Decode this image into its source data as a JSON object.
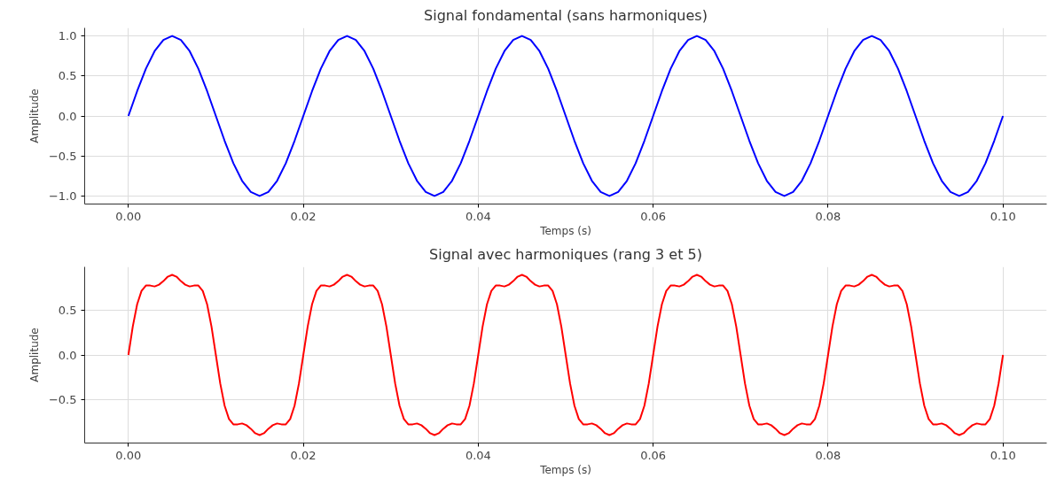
{
  "chart_data": [
    {
      "type": "line",
      "title": "Signal fondamental (sans harmoniques)",
      "xlabel": "Temps (s)",
      "ylabel": "Amplitude",
      "x": [
        0,
        0.001,
        0.002,
        0.003,
        0.004,
        0.005,
        0.006,
        0.007,
        0.008,
        0.009,
        0.01,
        0.011,
        0.012,
        0.013,
        0.014,
        0.015,
        0.016,
        0.017,
        0.018,
        0.019,
        0.02,
        0.021,
        0.022,
        0.023,
        0.024,
        0.025,
        0.026,
        0.027,
        0.028,
        0.029,
        0.03,
        0.031,
        0.032,
        0.033,
        0.034,
        0.035,
        0.036,
        0.037,
        0.038,
        0.039,
        0.04,
        0.041,
        0.042,
        0.043,
        0.044,
        0.045,
        0.046,
        0.047,
        0.048,
        0.049,
        0.05,
        0.051,
        0.052,
        0.053,
        0.054,
        0.055,
        0.056,
        0.057,
        0.058,
        0.059,
        0.06,
        0.061,
        0.062,
        0.063,
        0.064,
        0.065,
        0.066,
        0.067,
        0.068,
        0.069,
        0.07,
        0.071,
        0.072,
        0.073,
        0.074,
        0.075,
        0.076,
        0.077,
        0.078,
        0.079,
        0.08,
        0.081,
        0.082,
        0.083,
        0.084,
        0.085,
        0.086,
        0.087,
        0.088,
        0.089,
        0.09,
        0.091,
        0.092,
        0.093,
        0.094,
        0.095,
        0.096,
        0.097,
        0.098,
        0.099,
        0.1
      ],
      "series": [
        {
          "color": "#0000ff",
          "values": [
            0,
            0.31,
            0.59,
            0.81,
            0.95,
            1,
            0.95,
            0.81,
            0.59,
            0.31,
            0,
            -0.31,
            -0.59,
            -0.81,
            -0.95,
            -1,
            -0.95,
            -0.81,
            -0.59,
            -0.31,
            0,
            0.31,
            0.59,
            0.81,
            0.95,
            1,
            0.95,
            0.81,
            0.59,
            0.31,
            0,
            -0.31,
            -0.59,
            -0.81,
            -0.95,
            -1,
            -0.95,
            -0.81,
            -0.59,
            -0.31,
            0,
            0.31,
            0.59,
            0.81,
            0.95,
            1,
            0.95,
            0.81,
            0.59,
            0.31,
            0,
            -0.31,
            -0.59,
            -0.81,
            -0.95,
            -1,
            -0.95,
            -0.81,
            -0.59,
            -0.31,
            0,
            0.31,
            0.59,
            0.81,
            0.95,
            1,
            0.95,
            0.81,
            0.59,
            0.31,
            0,
            -0.31,
            -0.59,
            -0.81,
            -0.95,
            -1,
            -0.95,
            -0.81,
            -0.59,
            -0.31,
            0,
            0.31,
            0.59,
            0.81,
            0.95,
            1,
            0.95,
            0.81,
            0.59,
            0.31,
            0,
            -0.31,
            -0.59,
            -0.81,
            -0.95,
            -1,
            -0.95,
            -0.81,
            -0.59,
            -0.31,
            0
          ]
        }
      ],
      "xlim": [
        -0.005,
        0.105
      ],
      "ylim": [
        -1.1,
        1.1
      ],
      "xticks": [
        {
          "value": 0,
          "label": "0.00"
        },
        {
          "value": 0.02,
          "label": "0.02"
        },
        {
          "value": 0.04,
          "label": "0.04"
        },
        {
          "value": 0.06,
          "label": "0.06"
        },
        {
          "value": 0.08,
          "label": "0.08"
        },
        {
          "value": 0.1,
          "label": "0.10"
        }
      ],
      "yticks": [
        {
          "value": -1,
          "label": "−1.0"
        },
        {
          "value": -0.5,
          "label": "−0.5"
        },
        {
          "value": 0,
          "label": "0.0"
        },
        {
          "value": 0.5,
          "label": "0.5"
        },
        {
          "value": 1,
          "label": "1.0"
        }
      ],
      "grid": true,
      "line_style": "solid"
    },
    {
      "type": "line",
      "title": "Signal avec harmoniques (rang 3 et 5)",
      "xlabel": "Temps (s)",
      "ylabel": "Amplitude",
      "x": [
        0,
        0.0005,
        0.001,
        0.0015,
        0.002,
        0.0025,
        0.003,
        0.0035,
        0.004,
        0.0045,
        0.005,
        0.0055,
        0.006,
        0.0065,
        0.007,
        0.0075,
        0.008,
        0.0085,
        0.009,
        0.0095,
        0.01,
        0.0105,
        0.011,
        0.0115,
        0.012,
        0.0125,
        0.013,
        0.0135,
        0.014,
        0.0145,
        0.015,
        0.0155,
        0.016,
        0.0165,
        0.017,
        0.0175,
        0.018,
        0.0185,
        0.019,
        0.0195,
        0.02,
        0.0205,
        0.021,
        0.0215,
        0.022,
        0.0225,
        0.023,
        0.0235,
        0.024,
        0.0245,
        0.025,
        0.0255,
        0.026,
        0.0265,
        0.027,
        0.0275,
        0.028,
        0.0285,
        0.029,
        0.0295,
        0.03,
        0.0305,
        0.031,
        0.0315,
        0.032,
        0.0325,
        0.033,
        0.0335,
        0.034,
        0.0345,
        0.035,
        0.0355,
        0.036,
        0.0365,
        0.037,
        0.0375,
        0.038,
        0.0385,
        0.039,
        0.0395,
        0.04,
        0.0405,
        0.041,
        0.0415,
        0.042,
        0.0425,
        0.043,
        0.0435,
        0.044,
        0.0445,
        0.045,
        0.0455,
        0.046,
        0.0465,
        0.047,
        0.0475,
        0.048,
        0.0485,
        0.049,
        0.0495,
        0.05,
        0.0505,
        0.051,
        0.0515,
        0.052,
        0.0525,
        0.053,
        0.0535,
        0.054,
        0.0545,
        0.055,
        0.0555,
        0.056,
        0.0565,
        0.057,
        0.0575,
        0.058,
        0.0585,
        0.059,
        0.0595,
        0.06,
        0.0605,
        0.061,
        0.0615,
        0.062,
        0.0625,
        0.063,
        0.0635,
        0.064,
        0.0645,
        0.065,
        0.0655,
        0.066,
        0.0665,
        0.067,
        0.0675,
        0.068,
        0.0685,
        0.069,
        0.0695,
        0.07,
        0.0705,
        0.071,
        0.0715,
        0.072,
        0.0725,
        0.073,
        0.0735,
        0.074,
        0.0745,
        0.075,
        0.0755,
        0.076,
        0.0765,
        0.077,
        0.0775,
        0.078,
        0.0785,
        0.079,
        0.0795,
        0.08,
        0.0805,
        0.081,
        0.0815,
        0.082,
        0.0825,
        0.083,
        0.0835,
        0.084,
        0.0845,
        0.085,
        0.0855,
        0.086,
        0.0865,
        0.087,
        0.0875,
        0.088,
        0.0885,
        0.089,
        0.0895,
        0.09,
        0.0905,
        0.091,
        0.0915,
        0.092,
        0.0925,
        0.093,
        0.0935,
        0.094,
        0.0945,
        0.095,
        0.0955,
        0.096,
        0.0965,
        0.097,
        0.0975,
        0.098,
        0.0985,
        0.099,
        0.0995,
        0.1
      ],
      "series": [
        {
          "color": "#ff0000",
          "values": [
            0,
            0.32,
            0.57,
            0.72,
            0.78,
            0.78,
            0.77,
            0.79,
            0.83,
            0.88,
            0.9,
            0.88,
            0.83,
            0.79,
            0.77,
            0.78,
            0.78,
            0.72,
            0.57,
            0.32,
            0,
            -0.32,
            -0.57,
            -0.72,
            -0.78,
            -0.78,
            -0.77,
            -0.79,
            -0.83,
            -0.88,
            -0.9,
            -0.88,
            -0.83,
            -0.79,
            -0.77,
            -0.78,
            -0.78,
            -0.72,
            -0.57,
            -0.32,
            0,
            0.32,
            0.57,
            0.72,
            0.78,
            0.78,
            0.77,
            0.79,
            0.83,
            0.88,
            0.9,
            0.88,
            0.83,
            0.79,
            0.77,
            0.78,
            0.78,
            0.72,
            0.57,
            0.32,
            0,
            -0.32,
            -0.57,
            -0.72,
            -0.78,
            -0.78,
            -0.77,
            -0.79,
            -0.83,
            -0.88,
            -0.9,
            -0.88,
            -0.83,
            -0.79,
            -0.77,
            -0.78,
            -0.78,
            -0.72,
            -0.57,
            -0.32,
            0,
            0.32,
            0.57,
            0.72,
            0.78,
            0.78,
            0.77,
            0.79,
            0.83,
            0.88,
            0.9,
            0.88,
            0.83,
            0.79,
            0.77,
            0.78,
            0.78,
            0.72,
            0.57,
            0.32,
            0,
            -0.32,
            -0.57,
            -0.72,
            -0.78,
            -0.78,
            -0.77,
            -0.79,
            -0.83,
            -0.88,
            -0.9,
            -0.88,
            -0.83,
            -0.79,
            -0.77,
            -0.78,
            -0.78,
            -0.72,
            -0.57,
            -0.32,
            0,
            0.32,
            0.57,
            0.72,
            0.78,
            0.78,
            0.77,
            0.79,
            0.83,
            0.88,
            0.9,
            0.88,
            0.83,
            0.79,
            0.77,
            0.78,
            0.78,
            0.72,
            0.57,
            0.32,
            0,
            -0.32,
            -0.57,
            -0.72,
            -0.78,
            -0.78,
            -0.77,
            -0.79,
            -0.83,
            -0.88,
            -0.9,
            -0.88,
            -0.83,
            -0.79,
            -0.77,
            -0.78,
            -0.78,
            -0.72,
            -0.57,
            -0.32,
            0,
            0.32,
            0.57,
            0.72,
            0.78,
            0.78,
            0.77,
            0.79,
            0.83,
            0.88,
            0.9,
            0.88,
            0.83,
            0.79,
            0.77,
            0.78,
            0.78,
            0.72,
            0.57,
            0.32,
            0,
            -0.32,
            -0.57,
            -0.72,
            -0.78,
            -0.78,
            -0.77,
            -0.79,
            -0.83,
            -0.88,
            -0.9,
            -0.88,
            -0.83,
            -0.79,
            -0.77,
            -0.78,
            -0.78,
            -0.72,
            -0.57,
            -0.32,
            0
          ]
        }
      ],
      "xlim": [
        -0.005,
        0.105
      ],
      "ylim": [
        -0.99,
        0.99
      ],
      "xticks": [
        {
          "value": 0,
          "label": "0.00"
        },
        {
          "value": 0.02,
          "label": "0.02"
        },
        {
          "value": 0.04,
          "label": "0.04"
        },
        {
          "value": 0.06,
          "label": "0.06"
        },
        {
          "value": 0.08,
          "label": "0.08"
        },
        {
          "value": 0.1,
          "label": "0.10"
        }
      ],
      "yticks": [
        {
          "value": -0.5,
          "label": "−0.5"
        },
        {
          "value": 0,
          "label": "0.0"
        },
        {
          "value": 0.5,
          "label": "0.5"
        }
      ],
      "grid": true,
      "line_style": "solid"
    }
  ]
}
